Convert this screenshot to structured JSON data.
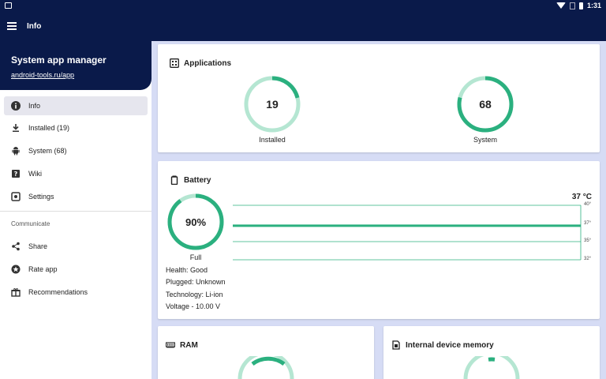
{
  "status_bar": {
    "time": "1:31"
  },
  "app_bar": {
    "title": "Info"
  },
  "drawer": {
    "title": "System app manager",
    "link": "android-tools.ru/app",
    "items": [
      {
        "label": "Info",
        "icon": "info-icon",
        "active": true
      },
      {
        "label": "Installed (19)",
        "icon": "download-icon"
      },
      {
        "label": "System (68)",
        "icon": "android-icon"
      },
      {
        "label": "Wiki",
        "icon": "help-icon"
      },
      {
        "label": "Settings",
        "icon": "settings-icon"
      }
    ],
    "section_label": "Communicate",
    "communicate_items": [
      {
        "label": "Share",
        "icon": "share-icon"
      },
      {
        "label": "Rate app",
        "icon": "star-icon"
      },
      {
        "label": "Recommendations",
        "icon": "gift-icon"
      }
    ]
  },
  "applications": {
    "title": "Applications",
    "installed": {
      "value": "19",
      "caption": "Installed",
      "fraction": 0.21
    },
    "system": {
      "value": "68",
      "caption": "System",
      "fraction": 0.79
    }
  },
  "battery": {
    "title": "Battery",
    "level": "90%",
    "level_fraction": 0.9,
    "status": "Full",
    "health": "Health: Good",
    "plugged": "Plugged: Unknown",
    "technology": "Technology: Li-ion",
    "voltage": "Voltage - 10.00 V",
    "temperature": "37 °C",
    "temperature_value": 37,
    "axis_ticks": [
      "40°",
      "37°",
      "35°",
      "32°"
    ]
  },
  "ram": {
    "title": "RAM"
  },
  "internal_memory": {
    "title": "Internal device memory"
  },
  "colors": {
    "primary": "#0a1a4a",
    "accent": "#2bb07f",
    "accent_light": "#b5e6d2",
    "background": "#d6dcf5"
  }
}
